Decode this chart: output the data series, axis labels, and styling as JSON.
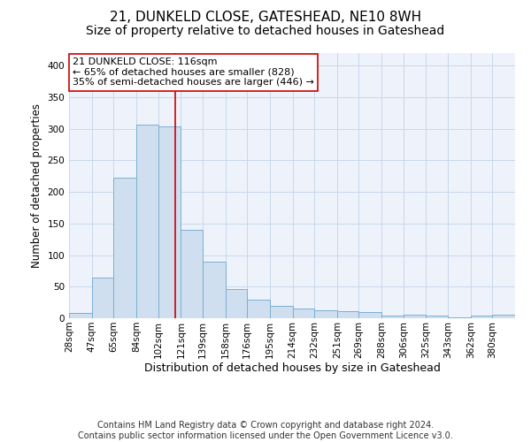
{
  "title": "21, DUNKELD CLOSE, GATESHEAD, NE10 8WH",
  "subtitle": "Size of property relative to detached houses in Gateshead",
  "xlabel": "Distribution of detached houses by size in Gateshead",
  "ylabel": "Number of detached properties",
  "bin_edges": [
    28,
    47,
    65,
    84,
    102,
    121,
    139,
    158,
    176,
    195,
    214,
    232,
    251,
    269,
    288,
    306,
    325,
    343,
    362,
    380,
    399
  ],
  "bar_heights": [
    8,
    64,
    222,
    306,
    304,
    140,
    90,
    46,
    30,
    20,
    15,
    13,
    11,
    10,
    4,
    5,
    4,
    2,
    4,
    5
  ],
  "bar_color": "#cfdff0",
  "bar_edge_color": "#7aafd4",
  "property_size": 116,
  "property_line_color": "#cc0000",
  "annotation_line1": "21 DUNKELD CLOSE: 116sqm",
  "annotation_line2": "← 65% of detached houses are smaller (828)",
  "annotation_line3": "35% of semi-detached houses are larger (446) →",
  "annotation_box_color": "#ffffff",
  "annotation_box_edge": "#cc0000",
  "ylim": [
    0,
    420
  ],
  "yticks": [
    0,
    50,
    100,
    150,
    200,
    250,
    300,
    350,
    400
  ],
  "footer_line1": "Contains HM Land Registry data © Crown copyright and database right 2024.",
  "footer_line2": "Contains public sector information licensed under the Open Government Licence v3.0.",
  "grid_color": "#c8d8eb",
  "background_color": "#eef3fb",
  "title_fontsize": 11,
  "subtitle_fontsize": 10,
  "xlabel_fontsize": 9,
  "ylabel_fontsize": 8.5,
  "tick_fontsize": 7.5,
  "annotation_fontsize": 8,
  "footer_fontsize": 7
}
